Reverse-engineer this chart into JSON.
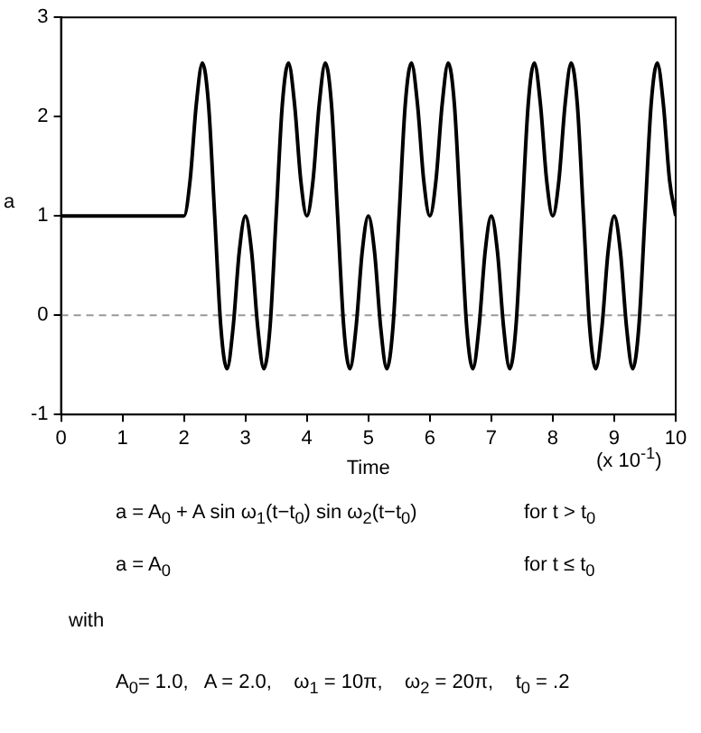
{
  "chart_data": {
    "type": "line",
    "xlabel": "Time",
    "ylabel": "a",
    "x": [
      0,
      2,
      2.1,
      2.2,
      2.3,
      2.4,
      2.5,
      2.6,
      2.7,
      2.8,
      2.9,
      3,
      3.1,
      3.2,
      3.3,
      3.4,
      3.5,
      3.6,
      3.7,
      3.8,
      3.9,
      4,
      4.1,
      4.2,
      4.3,
      4.4,
      4.5,
      4.6,
      4.7,
      4.8,
      4.9,
      5,
      5.1,
      5.2,
      5.3,
      5.4,
      5.5,
      5.6,
      5.7,
      5.8,
      5.9,
      6,
      6.1,
      6.2,
      6.3,
      6.4,
      6.5,
      6.6,
      6.7,
      6.8,
      6.9,
      7,
      7.1,
      7.2,
      7.3,
      7.4,
      7.5,
      7.6,
      7.7,
      7.8,
      7.9,
      8,
      8.1,
      8.2,
      8.3,
      8.4,
      8.5,
      8.6,
      8.7,
      8.8,
      8.9,
      9,
      9.1,
      9.2,
      9.3,
      9.4,
      9.5,
      9.6,
      9.7,
      9.8,
      9.9,
      10
    ],
    "series": [
      {
        "color": "#000000",
        "values": [
          1,
          1,
          1.36,
          2.12,
          2.54,
          2.12,
          1,
          -0.12,
          -0.54,
          -0.12,
          0.64,
          1,
          0.64,
          -0.12,
          -0.54,
          -0.12,
          1,
          2.12,
          2.54,
          2.12,
          1.36,
          1,
          1.36,
          2.12,
          2.54,
          2.12,
          1,
          -0.12,
          -0.54,
          -0.12,
          0.64,
          1,
          0.64,
          -0.12,
          -0.54,
          -0.12,
          1,
          2.12,
          2.54,
          2.12,
          1.36,
          1,
          1.36,
          2.12,
          2.54,
          2.12,
          1,
          -0.12,
          -0.54,
          -0.12,
          0.64,
          1,
          0.64,
          -0.12,
          -0.54,
          -0.12,
          1,
          2.12,
          2.54,
          2.12,
          1.36,
          1,
          1.36,
          2.12,
          2.54,
          2.12,
          1,
          -0.12,
          -0.54,
          -0.12,
          0.64,
          1,
          0.64,
          -0.12,
          -0.54,
          -0.12,
          1,
          2.12,
          2.54,
          2.12,
          1.36,
          1
        ]
      }
    ],
    "xlim": [
      0,
      10
    ],
    "xticks": [
      0,
      1,
      2,
      3,
      4,
      5,
      6,
      7,
      8,
      9,
      10
    ],
    "ylim": [
      -1,
      3
    ],
    "yticks": [
      -1,
      0,
      1,
      2,
      3
    ],
    "grid": false,
    "legend": false,
    "marker": "none",
    "line_style": "solid",
    "ref_lines": [
      {
        "axis": "y",
        "value": 0,
        "color": "#999999",
        "line_style": "dashed"
      }
    ],
    "annotations": [
      "(x 10$^{-1}$)",
      "a = A$_{0}$ + A sin ω$_{1}$(t−t$_{0}$) sin ω$_{2}$(t−t$_{0}$)",
      "for t > t$_{0}$",
      "a = A$_{0}$",
      "for t ≤ t$_{0}$",
      "with",
      "A$_{0}$= 1.0,   A = 2.0,    ω$_{1}$ = 10π,    ω$_{2}$ = 20π,    t$_{0}$ = .2"
    ]
  }
}
